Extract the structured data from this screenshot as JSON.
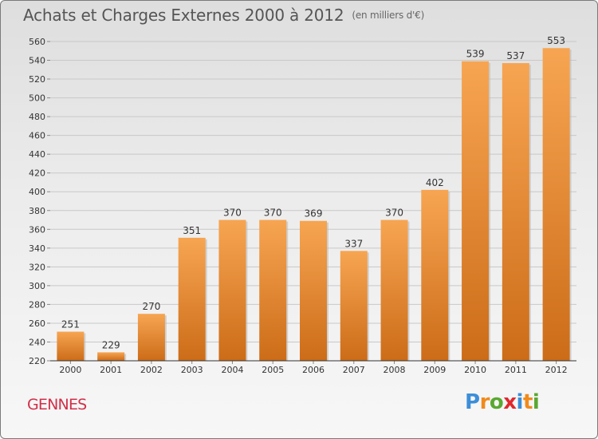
{
  "title": "Achats et Charges Externes 2000 à 2012",
  "subtitle": "(en milliers d'€)",
  "town": "GENNES",
  "logo": {
    "letters": [
      "P",
      "r",
      "o",
      "x",
      "i",
      "t",
      "i"
    ],
    "colors": [
      "#3c8ed8",
      "#f08a1c",
      "#5aa832",
      "#e0282e",
      "#3c8ed8",
      "#f08a1c",
      "#5aa832"
    ]
  },
  "colors": {
    "bar_light": "#f7a552",
    "bar_dark": "#cc6c18",
    "grid": "#c8c8c8",
    "axis": "#333333"
  },
  "chart_data": {
    "type": "bar",
    "categories": [
      "2000",
      "2001",
      "2002",
      "2003",
      "2004",
      "2005",
      "2006",
      "2007",
      "2008",
      "2009",
      "2010",
      "2011",
      "2012"
    ],
    "values": [
      251,
      229,
      270,
      351,
      370,
      370,
      369,
      337,
      370,
      402,
      539,
      537,
      553
    ],
    "ylim": [
      220,
      560
    ],
    "ytick_step": 20,
    "grid": true,
    "xlabel": "",
    "ylabel": ""
  }
}
